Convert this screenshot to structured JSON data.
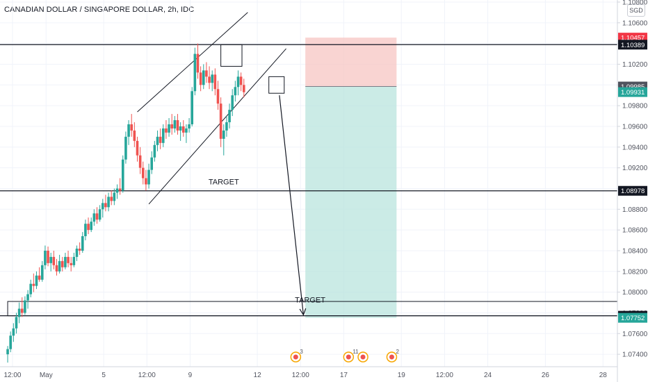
{
  "header": {
    "title": "CANADIAN DOLLAR / SINGAPORE DOLLAR, 2h, IDC",
    "currency": "SGD"
  },
  "chart_data": {
    "type": "candlestick",
    "symbol": "CADSGD",
    "timeframe": "2h",
    "ylim": [
      1.0728,
      1.1082
    ],
    "price_ticks": [
      "1.10800",
      "1.10600",
      "1.10400",
      "1.10200",
      "1.10000",
      "1.09800",
      "1.09600",
      "1.09400",
      "1.09200",
      "1.09000",
      "1.08800",
      "1.08600",
      "1.08400",
      "1.08200",
      "1.08000",
      "1.07800",
      "1.07600",
      "1.07400"
    ],
    "time_labels": [
      {
        "label": "12:00",
        "x": 0.5
      },
      {
        "label": "May",
        "x": 4.0
      },
      {
        "label": "5",
        "x": 10.0
      },
      {
        "label": "12:00",
        "x": 14.5
      },
      {
        "label": "9",
        "x": 19.0
      },
      {
        "label": "12",
        "x": 26.0
      },
      {
        "label": "12:00",
        "x": 30.5
      },
      {
        "label": "17",
        "x": 35.0
      },
      {
        "label": "19",
        "x": 41.0
      },
      {
        "label": "12:00",
        "x": 45.5
      },
      {
        "label": "24",
        "x": 50.0
      },
      {
        "label": "26",
        "x": 56.0
      },
      {
        "label": "28",
        "x": 62.0
      }
    ],
    "price_tags": [
      {
        "value": 1.10457,
        "label": "1.10457",
        "color": "#f23645"
      },
      {
        "value": 1.10389,
        "label": "1.10389",
        "color": "#131722"
      },
      {
        "value": 1.09985,
        "label": "1.09985",
        "color": "#50535e"
      },
      {
        "value": 1.09931,
        "label": "1.09931",
        "color": "#26a69a"
      },
      {
        "value": 1.08978,
        "label": "1.08978",
        "color": "#131722"
      },
      {
        "value": 1.07772,
        "label": "1.07772",
        "color": "#131722"
      },
      {
        "value": 1.07752,
        "label": "1.07752",
        "color": "#26a69a"
      }
    ],
    "annotations": {
      "target_labels": [
        {
          "text": "TARGET",
          "x": 22.5,
          "y": 1.0904
        },
        {
          "text": "TARGET",
          "x": 31.5,
          "y": 1.079
        }
      ],
      "horizontal_lines": [
        1.10389,
        1.08978,
        1.07772
      ],
      "zones": [
        {
          "name": "resistance-box",
          "x0": 22.2,
          "x1": 24.4,
          "y0": 1.10389,
          "y1": 1.1018
        },
        {
          "name": "small-box",
          "x0": 27.2,
          "x1": 28.8,
          "y0": 1.1008,
          "y1": 1.0992
        },
        {
          "name": "target-zone",
          "x0": 0.0,
          "x1": 63.5,
          "y0": 1.0791,
          "y1": 1.07772
        }
      ],
      "wedge_lines": [
        {
          "x0": 13.5,
          "y0": 1.0974,
          "x1": 25.0,
          "y1": 1.107
        },
        {
          "x0": 14.7,
          "y0": 1.0885,
          "x1": 29.0,
          "y1": 1.1035
        }
      ],
      "projection_arrow": {
        "x0": 28.3,
        "y0": 1.099,
        "x1": 30.8,
        "y1": 1.0778
      },
      "position": {
        "x0": 31.0,
        "x1": 40.5,
        "entry": 1.09985,
        "stop": 1.10457,
        "target": 1.07752
      }
    },
    "candles": [
      [
        0.0,
        1.074,
        1.0748,
        1.0732,
        1.0745
      ],
      [
        0.3,
        1.0745,
        1.0762,
        1.0742,
        1.0758
      ],
      [
        0.6,
        1.0758,
        1.077,
        1.0752,
        1.0765
      ],
      [
        0.9,
        1.0765,
        1.078,
        1.076,
        1.0776
      ],
      [
        1.2,
        1.0776,
        1.079,
        1.077,
        1.0784
      ],
      [
        1.5,
        1.0784,
        1.0795,
        1.0776,
        1.078
      ],
      [
        1.8,
        1.078,
        1.0796,
        1.0778,
        1.0792
      ],
      [
        2.1,
        1.0792,
        1.0802,
        1.0784,
        1.0798
      ],
      [
        2.4,
        1.0798,
        1.0812,
        1.0795,
        1.0808
      ],
      [
        2.7,
        1.0808,
        1.0818,
        1.08,
        1.0806
      ],
      [
        3.0,
        1.0806,
        1.082,
        1.0803,
        1.0816
      ],
      [
        3.3,
        1.0816,
        1.0824,
        1.081,
        1.0812
      ],
      [
        3.6,
        1.0812,
        1.083,
        1.081,
        1.0826
      ],
      [
        3.9,
        1.0826,
        1.0845,
        1.0822,
        1.084
      ],
      [
        4.2,
        1.084,
        1.0844,
        1.0825,
        1.0828
      ],
      [
        4.5,
        1.0828,
        1.0838,
        1.082,
        1.0834
      ],
      [
        4.8,
        1.0834,
        1.084,
        1.0822,
        1.0826
      ],
      [
        5.1,
        1.0826,
        1.0832,
        1.0816,
        1.082
      ],
      [
        5.4,
        1.082,
        1.0836,
        1.0818,
        1.083
      ],
      [
        5.7,
        1.083,
        1.0834,
        1.082,
        1.0824
      ],
      [
        6.0,
        1.0824,
        1.0838,
        1.0822,
        1.0834
      ],
      [
        6.3,
        1.0834,
        1.084,
        1.0824,
        1.0828
      ],
      [
        6.6,
        1.0828,
        1.0834,
        1.082,
        1.0826
      ],
      [
        6.9,
        1.0826,
        1.0838,
        1.0824,
        1.0834
      ],
      [
        7.2,
        1.0834,
        1.0845,
        1.083,
        1.0842
      ],
      [
        7.5,
        1.0842,
        1.0848,
        1.0836,
        1.084
      ],
      [
        7.8,
        1.084,
        1.0858,
        1.0838,
        1.0854
      ],
      [
        8.1,
        1.0854,
        1.087,
        1.085,
        1.0866
      ],
      [
        8.4,
        1.0866,
        1.0872,
        1.0856,
        1.086
      ],
      [
        8.7,
        1.086,
        1.0872,
        1.0858,
        1.0868
      ],
      [
        9.0,
        1.0868,
        1.088,
        1.0864,
        1.0876
      ],
      [
        9.3,
        1.0876,
        1.0882,
        1.0866,
        1.087
      ],
      [
        9.6,
        1.087,
        1.0884,
        1.0868,
        1.088
      ],
      [
        9.9,
        1.088,
        1.089,
        1.0872,
        1.0886
      ],
      [
        10.2,
        1.0886,
        1.0894,
        1.0878,
        1.0882
      ],
      [
        10.5,
        1.0882,
        1.0896,
        1.0878,
        1.0892
      ],
      [
        10.8,
        1.0892,
        1.0898,
        1.0884,
        1.0888
      ],
      [
        11.1,
        1.0888,
        1.09,
        1.0884,
        1.0896
      ],
      [
        11.4,
        1.0896,
        1.0904,
        1.089,
        1.09
      ],
      [
        11.7,
        1.09,
        1.091,
        1.0894,
        1.0898
      ],
      [
        12.0,
        1.0898,
        1.0932,
        1.0896,
        1.0928
      ],
      [
        12.3,
        1.0928,
        1.0955,
        1.0924,
        1.095
      ],
      [
        12.6,
        1.095,
        1.0966,
        1.0942,
        1.0962
      ],
      [
        12.9,
        1.0962,
        1.0972,
        1.095,
        1.0956
      ],
      [
        13.2,
        1.0956,
        1.0964,
        1.094,
        1.0946
      ],
      [
        13.5,
        1.0946,
        1.095,
        1.0926,
        1.0932
      ],
      [
        13.8,
        1.0932,
        1.094,
        1.0914,
        1.092
      ],
      [
        14.1,
        1.092,
        1.0926,
        1.0904,
        1.091
      ],
      [
        14.4,
        1.091,
        1.0918,
        1.0898,
        1.0904
      ],
      [
        14.7,
        1.0904,
        1.0924,
        1.09,
        1.0918
      ],
      [
        15.0,
        1.0918,
        1.0936,
        1.0914,
        1.093
      ],
      [
        15.3,
        1.093,
        1.0946,
        1.0926,
        1.0942
      ],
      [
        15.6,
        1.0942,
        1.0956,
        1.0936,
        1.095
      ],
      [
        15.9,
        1.095,
        1.0958,
        1.0938,
        1.0944
      ],
      [
        16.2,
        1.0944,
        1.0962,
        1.094,
        1.0958
      ],
      [
        16.5,
        1.0958,
        1.0966,
        1.0948,
        1.0954
      ],
      [
        16.8,
        1.0954,
        1.0968,
        1.095,
        1.0962
      ],
      [
        17.1,
        1.0962,
        1.0972,
        1.0952,
        1.0958
      ],
      [
        17.4,
        1.0958,
        1.097,
        1.0954,
        1.0966
      ],
      [
        17.7,
        1.0966,
        1.0972,
        1.0952,
        1.0956
      ],
      [
        18.0,
        1.0956,
        1.0964,
        1.0946,
        1.096
      ],
      [
        18.3,
        1.096,
        1.0966,
        1.095,
        1.0954
      ],
      [
        18.6,
        1.0954,
        1.0962,
        1.0944,
        1.0958
      ],
      [
        18.9,
        1.0958,
        1.0968,
        1.0954,
        1.0962
      ],
      [
        19.2,
        1.0962,
        1.0998,
        1.096,
        1.0994
      ],
      [
        19.5,
        1.0994,
        1.1036,
        1.099,
        1.103
      ],
      [
        19.8,
        1.103,
        1.104,
        1.1006,
        1.1012
      ],
      [
        20.1,
        1.1012,
        1.1018,
        1.0994,
        1.1
      ],
      [
        20.4,
        1.1,
        1.102,
        1.0996,
        1.1014
      ],
      [
        20.7,
        1.1014,
        1.1022,
        1.1002,
        1.1008
      ],
      [
        21.0,
        1.1008,
        1.1018,
        1.0996,
        1.1002
      ],
      [
        21.3,
        1.1002,
        1.1014,
        1.0994,
        1.101
      ],
      [
        21.6,
        1.101,
        1.1016,
        1.099,
        1.0996
      ],
      [
        21.9,
        1.0996,
        1.1004,
        1.0976,
        1.0982
      ],
      [
        22.2,
        1.0982,
        1.0988,
        1.094,
        1.0948
      ],
      [
        22.5,
        1.0948,
        1.0962,
        1.0932,
        1.0956
      ],
      [
        22.8,
        1.0956,
        1.097,
        1.095,
        1.0964
      ],
      [
        23.1,
        1.0964,
        1.0982,
        1.0958,
        1.0976
      ],
      [
        23.4,
        1.0976,
        1.0996,
        1.097,
        1.099
      ],
      [
        23.7,
        1.099,
        1.1004,
        1.0984,
        1.0998
      ],
      [
        24.0,
        1.0998,
        1.1014,
        1.099,
        1.1008
      ],
      [
        24.3,
        1.1008,
        1.1012,
        1.0994,
        1.1
      ],
      [
        24.6,
        1.1,
        1.1006,
        1.0988,
        1.0993
      ]
    ],
    "events": [
      {
        "x": 30.0,
        "count": "3"
      },
      {
        "x": 35.5,
        "count": "11"
      },
      {
        "x": 37.0,
        "count": ""
      },
      {
        "x": 40.0,
        "count": "2"
      }
    ]
  }
}
